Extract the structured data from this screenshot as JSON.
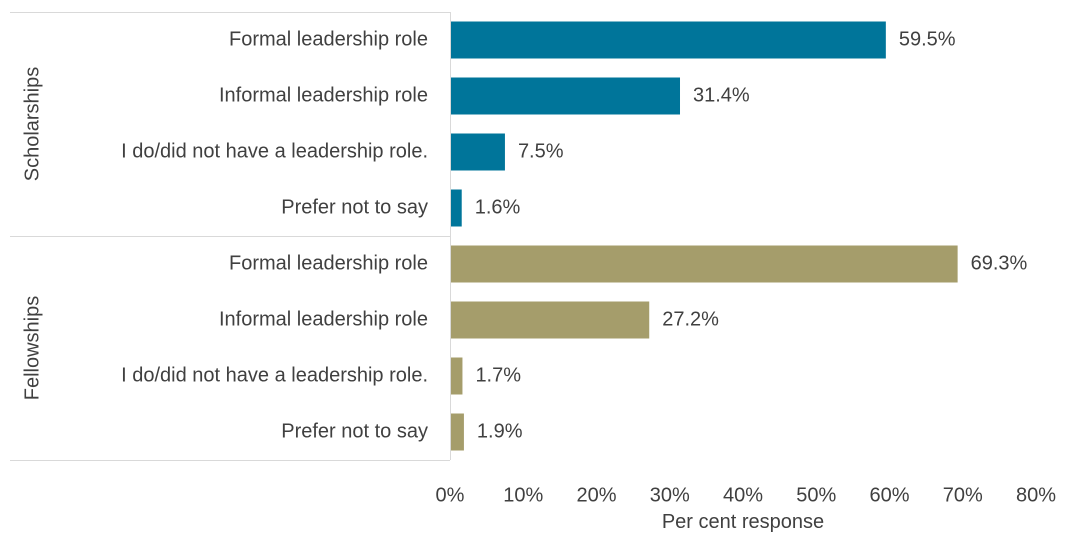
{
  "chart_data": {
    "type": "bar",
    "orientation": "horizontal",
    "xlabel": "Per cent response",
    "xlim": [
      0,
      80
    ],
    "x_ticks": [
      "0%",
      "10%",
      "20%",
      "30%",
      "40%",
      "50%",
      "60%",
      "70%",
      "80%"
    ],
    "grid": false,
    "groups": [
      {
        "name": "Scholarships",
        "color": "#00759A",
        "categories": [
          "Formal leadership role",
          "Informal leadership role",
          "I do/did not have a leadership role.",
          "Prefer not to say"
        ],
        "values": [
          59.5,
          31.4,
          7.5,
          1.6
        ],
        "labels": [
          "59.5%",
          "31.4%",
          "7.5%",
          "1.6%"
        ]
      },
      {
        "name": "Fellowships",
        "color": "#A59D6B",
        "categories": [
          "Formal leadership role",
          "Informal leadership role",
          "I do/did not have a leadership role.",
          "Prefer not to say"
        ],
        "values": [
          69.3,
          27.2,
          1.7,
          1.9
        ],
        "labels": [
          "69.3%",
          "27.2%",
          "1.7%",
          "1.9%"
        ]
      }
    ]
  }
}
